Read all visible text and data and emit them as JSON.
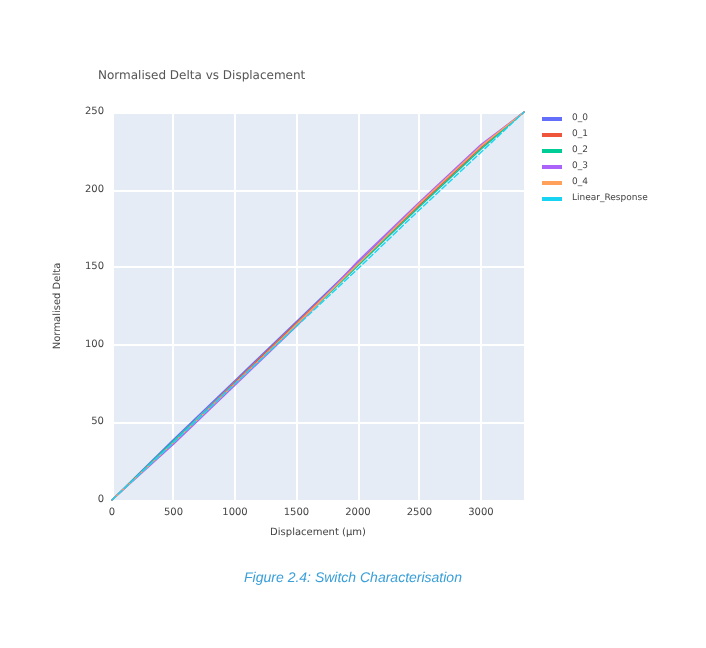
{
  "chart_data": {
    "type": "line",
    "title": "Normalised Delta vs Displacement",
    "xlabel": "Displacement (µm)",
    "ylabel": "Normalised Delta",
    "annotations": [
      "Figure 2.4: Switch Characterisation"
    ],
    "x": [
      0,
      500,
      1000,
      1500,
      2000,
      2500,
      3000,
      3350
    ],
    "series": [
      {
        "name": "0_0",
        "color": "#636efa",
        "values": [
          0,
          39,
          77,
          115,
          153,
          191,
          228,
          250
        ]
      },
      {
        "name": "0_1",
        "color": "#ef553b",
        "values": [
          0,
          37,
          76,
          114,
          152,
          190,
          227,
          250
        ]
      },
      {
        "name": "0_2",
        "color": "#00cc96",
        "values": [
          0,
          38,
          75,
          113,
          151,
          189,
          226,
          250
        ]
      },
      {
        "name": "0_3",
        "color": "#ab63fa",
        "values": [
          0,
          36,
          74,
          112,
          154,
          192,
          229,
          250
        ]
      },
      {
        "name": "0_4",
        "color": "#ffa15a",
        "values": [
          0,
          37,
          75,
          113,
          152,
          191,
          228,
          250
        ]
      },
      {
        "name": "Linear_Response",
        "color": "#19d3f3",
        "line_style": "dashed",
        "values": [
          0,
          37,
          75,
          112,
          149,
          187,
          224,
          250
        ]
      }
    ],
    "xlim": [
      0,
      3350
    ],
    "xticks": [
      0,
      500,
      1000,
      1500,
      2000,
      2500,
      3000
    ],
    "ylim": [
      0,
      250
    ],
    "yticks": [
      0,
      50,
      100,
      150,
      200,
      250
    ],
    "grid": true,
    "legend": "top right",
    "marker": "none",
    "line_style": "solid"
  }
}
